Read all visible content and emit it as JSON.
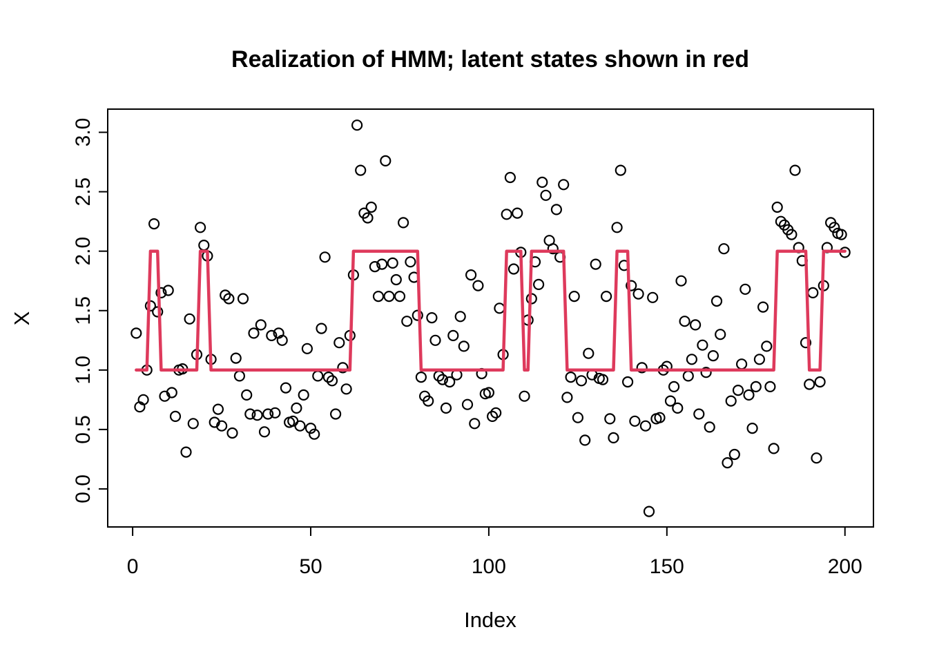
{
  "page": {
    "background": "#ffffff"
  },
  "chart_data": {
    "type": "scatter",
    "title": "Realization of HMM; latent states shown in red",
    "xlabel": "Index",
    "ylabel": "X",
    "x_ticks": [
      0,
      50,
      100,
      150,
      200
    ],
    "y_ticks": [
      "0.0",
      "0.5",
      "1.0",
      "1.5",
      "2.0",
      "2.5",
      "3.0"
    ],
    "xlim": [
      -7.0,
      208.0
    ],
    "ylim": [
      -0.32,
      3.195
    ],
    "grid": false,
    "legend_position": "none",
    "point_color": "#000000",
    "state_line_color": "#DE3A5C",
    "series": [
      {
        "name": "X observations",
        "type": "scatter",
        "x_start": 1,
        "values": [
          1.31,
          0.69,
          0.75,
          1.0,
          1.54,
          2.23,
          1.49,
          1.65,
          0.78,
          1.67,
          0.81,
          0.61,
          1.0,
          1.01,
          0.31,
          1.43,
          0.55,
          1.13,
          2.2,
          2.05,
          1.96,
          1.09,
          0.56,
          0.67,
          0.53,
          1.63,
          1.6,
          0.47,
          1.1,
          0.95,
          1.6,
          0.79,
          0.63,
          1.31,
          0.62,
          1.38,
          0.48,
          0.63,
          1.29,
          0.64,
          1.31,
          1.25,
          0.85,
          0.56,
          0.57,
          0.68,
          0.53,
          0.79,
          1.18,
          0.51,
          0.46,
          0.95,
          1.35,
          1.95,
          0.94,
          0.91,
          0.63,
          1.23,
          1.02,
          0.84,
          1.29,
          1.8,
          3.06,
          2.68,
          2.32,
          2.28,
          2.37,
          1.87,
          1.62,
          1.89,
          2.76,
          1.62,
          1.9,
          1.76,
          1.62,
          2.24,
          1.41,
          1.91,
          1.78,
          1.46,
          0.94,
          0.78,
          0.74,
          1.44,
          1.25,
          0.95,
          0.92,
          0.68,
          0.9,
          1.29,
          0.96,
          1.45,
          1.2,
          0.71,
          1.8,
          0.55,
          1.71,
          0.97,
          0.8,
          0.81,
          0.61,
          0.64,
          1.52,
          1.13,
          2.31,
          2.62,
          1.85,
          2.32,
          1.99,
          0.78,
          1.42,
          1.6,
          1.91,
          1.72,
          2.58,
          2.47,
          2.09,
          2.02,
          2.35,
          1.95,
          2.56,
          0.77,
          0.94,
          1.62,
          0.6,
          0.91,
          0.41,
          1.14,
          0.96,
          1.89,
          0.93,
          0.92,
          1.62,
          0.59,
          0.43,
          2.2,
          2.68,
          1.88,
          0.9,
          1.71,
          0.57,
          1.64,
          1.02,
          0.53,
          -0.19,
          1.61,
          0.59,
          0.6,
          1.0,
          1.03,
          0.74,
          0.86,
          0.68,
          1.75,
          1.41,
          0.95,
          1.09,
          1.38,
          0.63,
          1.21,
          0.98,
          0.52,
          1.12,
          1.58,
          1.3,
          2.02,
          0.22,
          0.74,
          0.29,
          0.83,
          1.05,
          1.68,
          0.79,
          0.51,
          0.86,
          1.09,
          1.53,
          1.2,
          0.86,
          0.34,
          2.37,
          2.25,
          2.22,
          2.18,
          2.14,
          2.68,
          2.03,
          1.92,
          1.23,
          0.88,
          1.65,
          0.26,
          0.9,
          1.71,
          2.03,
          2.24,
          2.2,
          2.15,
          2.14,
          1.99
        ]
      },
      {
        "name": "latent states",
        "type": "line",
        "x_start": 1,
        "values": [
          1,
          1,
          1,
          1,
          2,
          2,
          2,
          1,
          1,
          1,
          1,
          1,
          1,
          1,
          1,
          1,
          1,
          1,
          2,
          2,
          2,
          1,
          1,
          1,
          1,
          1,
          1,
          1,
          1,
          1,
          1,
          1,
          1,
          1,
          1,
          1,
          1,
          1,
          1,
          1,
          1,
          1,
          1,
          1,
          1,
          1,
          1,
          1,
          1,
          1,
          1,
          1,
          1,
          1,
          1,
          1,
          1,
          1,
          1,
          1,
          1,
          2,
          2,
          2,
          2,
          2,
          2,
          2,
          2,
          2,
          2,
          2,
          2,
          2,
          2,
          2,
          2,
          2,
          2,
          2,
          1,
          1,
          1,
          1,
          1,
          1,
          1,
          1,
          1,
          1,
          1,
          1,
          1,
          1,
          1,
          1,
          1,
          1,
          1,
          1,
          1,
          1,
          1,
          1,
          2,
          2,
          2,
          2,
          2,
          1,
          1,
          2,
          2,
          2,
          2,
          2,
          2,
          2,
          2,
          2,
          2,
          1,
          1,
          1,
          1,
          1,
          1,
          1,
          1,
          1,
          1,
          1,
          1,
          1,
          1,
          2,
          2,
          2,
          2,
          1,
          1,
          1,
          1,
          1,
          1,
          1,
          1,
          1,
          1,
          1,
          1,
          1,
          1,
          1,
          1,
          1,
          1,
          1,
          1,
          1,
          1,
          1,
          1,
          1,
          1,
          1,
          1,
          1,
          1,
          1,
          1,
          1,
          1,
          1,
          1,
          1,
          1,
          1,
          1,
          1,
          2,
          2,
          2,
          2,
          2,
          2,
          2,
          2,
          2,
          1,
          1,
          1,
          1,
          2,
          2,
          2,
          2,
          2,
          2,
          2
        ]
      }
    ]
  }
}
